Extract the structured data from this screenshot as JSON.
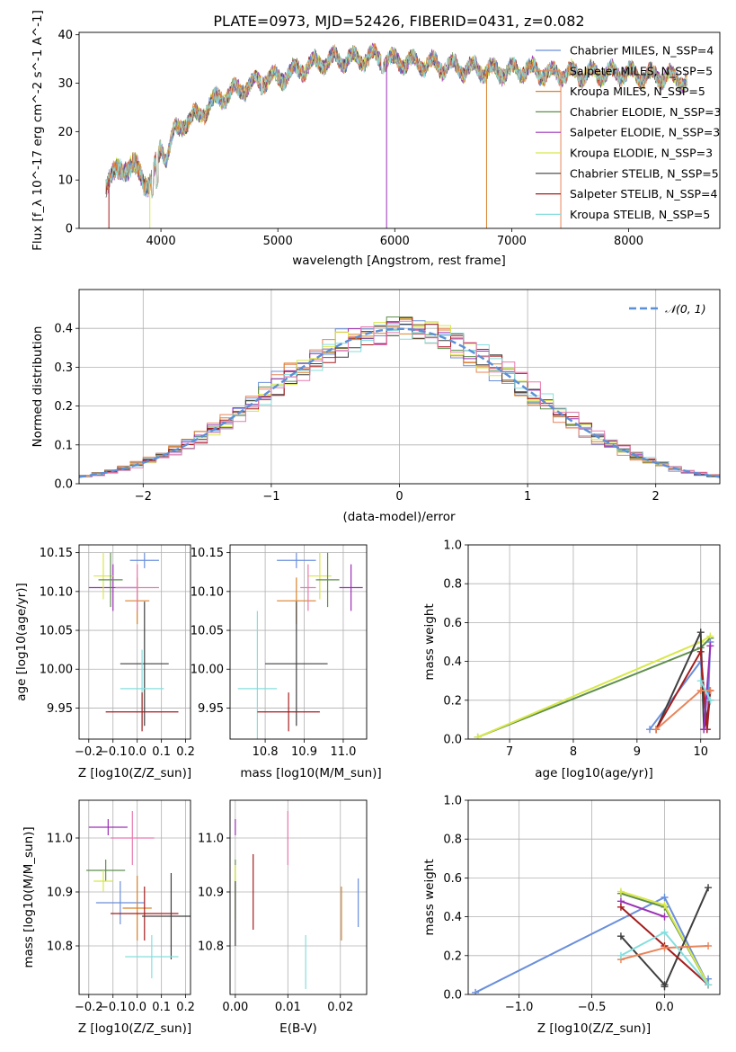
{
  "chart_data": [
    {
      "type": "line",
      "title": "PLATE=0973, MJD=52426, FIBERID=0431, z=0.082",
      "xlabel": "wavelength [Angstrom, rest frame]",
      "ylabel": "Flux [f_λ 10^-17 erg cm^-2 s^-1 A^-1]",
      "xlim": [
        3300,
        8780
      ],
      "ylim": [
        0,
        40.5
      ],
      "xticks": [
        4000,
        5000,
        6000,
        7000,
        8000
      ],
      "yticks": [
        0,
        10,
        20,
        30,
        40
      ],
      "series": [
        {
          "name": "Chabrier MILES, N_SSP=4",
          "color": "#6a8fdb"
        },
        {
          "name": "Salpeter MILES, N_SSP=5",
          "color": "#e8845a"
        },
        {
          "name": "Kroupa MILES, N_SSP=5",
          "color": "#d9822b"
        },
        {
          "name": "Chabrier ELODIE, N_SSP=3",
          "color": "#5f8f4d"
        },
        {
          "name": "Salpeter ELODIE, N_SSP=3",
          "color": "#9b30b5"
        },
        {
          "name": "Kroupa ELODIE, N_SSP=3",
          "color": "#d8e84a"
        },
        {
          "name": "Chabrier STELIB, N_SSP=5",
          "color": "#3f3f3f"
        },
        {
          "name": "Salpeter STELIB, N_SSP=4",
          "color": "#a51d1d"
        },
        {
          "name": "Kroupa STELIB, N_SSP=5",
          "color": "#86dede"
        }
      ],
      "spectrum_envelope": {
        "x": [
          3530,
          3600,
          3700,
          3800,
          3900,
          3950,
          4000,
          4050,
          4100,
          4200,
          4300,
          4400,
          4500,
          4600,
          4700,
          4800,
          4900,
          5000,
          5100,
          5200,
          5300,
          5400,
          5500,
          5600,
          5700,
          5800,
          5900,
          6000,
          6100,
          6200,
          6300,
          6400,
          6500,
          6600,
          6700,
          6800,
          6900,
          7000,
          7100,
          7200,
          7300,
          7400,
          7500,
          7600,
          7700,
          7800,
          7900,
          8000,
          8100,
          8200,
          8300,
          8400,
          8500
        ],
        "y": [
          10,
          11,
          13,
          12,
          9,
          12,
          17,
          15,
          19,
          22,
          23,
          25,
          27,
          28,
          29,
          30,
          31,
          31,
          32,
          33,
          34,
          34.5,
          35,
          35,
          35,
          35.5,
          35,
          34.5,
          34.5,
          34,
          34,
          33.5,
          33.5,
          33,
          33,
          32.5,
          32.5,
          32.5,
          33,
          32.5,
          32,
          32,
          32,
          32,
          32,
          32,
          32,
          32,
          31.5,
          31.5,
          31.5,
          31,
          30.5
        ]
      }
    },
    {
      "type": "bar",
      "title": "",
      "xlabel": "(data-model)/error",
      "ylabel": "Normed distribution",
      "xlim": [
        -2.5,
        2.5
      ],
      "ylim": [
        0,
        0.5
      ],
      "xticks": [
        -2,
        -1,
        0,
        1,
        2
      ],
      "yticks": [
        0.0,
        0.1,
        0.2,
        0.3,
        0.4
      ],
      "bin_width": 0.1,
      "legend": "$\\mathcal{N}(0,1)$",
      "gaussian": {
        "mu": 0,
        "sigma": 1,
        "color": "#5b8fd6"
      },
      "histogram_colors": [
        "#6a8fdb",
        "#e8845a",
        "#d9822b",
        "#5f8f4d",
        "#9b30b5",
        "#d8e84a",
        "#3f3f3f",
        "#a51d1d",
        "#86dede",
        "#e87ab0"
      ]
    },
    {
      "type": "scatter",
      "title": "",
      "xlabel": "Z [log10(Z/Z_sun)]",
      "ylabel": "age [log10(age/yr)]",
      "xlim": [
        -0.24,
        0.22
      ],
      "ylim": [
        9.91,
        10.16
      ],
      "xticks": [
        -0.2,
        -0.1,
        0.0,
        0.1,
        0.2
      ],
      "yticks": [
        9.95,
        10.0,
        10.05,
        10.1,
        10.15
      ],
      "points": [
        {
          "x": 0.03,
          "y": 10.14,
          "xerr": 0.06,
          "yerr": 0.01,
          "color": "#6a8fdb"
        },
        {
          "x": -0.1,
          "y": 10.105,
          "xerr": 0.1,
          "yerr": 0.03,
          "color": "#9b30b5"
        },
        {
          "x": -0.14,
          "y": 10.12,
          "xerr": 0.04,
          "yerr": 0.03,
          "color": "#d8e84a"
        },
        {
          "x": -0.11,
          "y": 10.115,
          "xerr": 0.05,
          "yerr": 0.035,
          "color": "#5f8f4d"
        },
        {
          "x": 0.0,
          "y": 10.088,
          "xerr": 0.05,
          "yerr": 0.03,
          "color": "#d9822b"
        },
        {
          "x": 0.0,
          "y": 10.105,
          "xerr": 0.09,
          "yerr": 0.03,
          "color": "#e87ab0"
        },
        {
          "x": 0.03,
          "y": 10.007,
          "xerr": 0.1,
          "yerr": 0.08,
          "color": "#3f3f3f"
        },
        {
          "x": 0.02,
          "y": 9.975,
          "xerr": 0.09,
          "yerr": 0.05,
          "color": "#86dede"
        },
        {
          "x": 0.02,
          "y": 9.945,
          "xerr": 0.15,
          "yerr": 0.025,
          "color": "#a51d1d"
        }
      ]
    },
    {
      "type": "scatter",
      "title": "",
      "xlabel": "mass [log10(M/M_sun)]",
      "ylabel": "",
      "xlim": [
        10.71,
        11.06
      ],
      "ylim": [
        9.91,
        10.16
      ],
      "xticks": [
        10.8,
        10.9,
        11.0
      ],
      "yticks": [
        9.95,
        10.0,
        10.05,
        10.1,
        10.15
      ],
      "points": [
        {
          "x": 10.88,
          "y": 10.14,
          "xerr": 0.05,
          "yerr": 0.01,
          "color": "#6a8fdb"
        },
        {
          "x": 11.02,
          "y": 10.105,
          "xerr": 0.03,
          "yerr": 0.03,
          "color": "#9b30b5"
        },
        {
          "x": 10.94,
          "y": 10.12,
          "xerr": 0.03,
          "yerr": 0.03,
          "color": "#d8e84a"
        },
        {
          "x": 10.96,
          "y": 10.115,
          "xerr": 0.03,
          "yerr": 0.035,
          "color": "#5f8f4d"
        },
        {
          "x": 10.88,
          "y": 10.088,
          "xerr": 0.05,
          "yerr": 0.03,
          "color": "#d9822b"
        },
        {
          "x": 10.91,
          "y": 10.105,
          "xerr": 0.02,
          "yerr": 0.03,
          "color": "#e87ab0"
        },
        {
          "x": 10.88,
          "y": 10.007,
          "xerr": 0.08,
          "yerr": 0.08,
          "color": "#3f3f3f"
        },
        {
          "x": 10.78,
          "y": 9.975,
          "xerr": 0.05,
          "yerr": 0.1,
          "color": "#86dede"
        },
        {
          "x": 10.86,
          "y": 9.945,
          "xerr": 0.08,
          "yerr": 0.025,
          "color": "#a51d1d"
        }
      ]
    },
    {
      "type": "line",
      "title": "",
      "xlabel": "age [log10(age/yr)]",
      "ylabel": "mass weight",
      "xlim": [
        6.35,
        10.3
      ],
      "ylim": [
        0,
        1
      ],
      "xticks": [
        7,
        8,
        9,
        10
      ],
      "yticks": [
        0.0,
        0.2,
        0.4,
        0.6,
        0.8,
        1.0
      ],
      "series": [
        {
          "color": "#5f8f4d",
          "x": [
            6.5,
            10.0,
            10.15
          ],
          "y": [
            0.01,
            0.47,
            0.52
          ]
        },
        {
          "color": "#d8e84a",
          "x": [
            6.5,
            10.0,
            10.15
          ],
          "y": [
            0.01,
            0.5,
            0.53
          ]
        },
        {
          "color": "#6a8fdb",
          "x": [
            9.2,
            10.0,
            10.1,
            10.15
          ],
          "y": [
            0.05,
            0.4,
            0.05,
            0.5
          ]
        },
        {
          "color": "#3f3f3f",
          "x": [
            9.3,
            10.0,
            10.05,
            10.15
          ],
          "y": [
            0.05,
            0.55,
            0.05,
            0.2
          ]
        },
        {
          "color": "#a51d1d",
          "x": [
            9.3,
            10.0,
            10.1,
            10.15
          ],
          "y": [
            0.05,
            0.45,
            0.05,
            0.25
          ]
        },
        {
          "color": "#9b30b5",
          "x": [
            10.05,
            10.15
          ],
          "y": [
            0.05,
            0.48
          ]
        },
        {
          "color": "#e8845a",
          "x": [
            9.3,
            10.0,
            10.15
          ],
          "y": [
            0.05,
            0.25,
            0.25
          ]
        },
        {
          "color": "#86dede",
          "x": [
            10.0,
            10.15
          ],
          "y": [
            0.3,
            0.2
          ]
        }
      ]
    },
    {
      "type": "scatter",
      "title": "",
      "xlabel": "Z [log10(Z/Z_sun)]",
      "ylabel": "mass [log10(M/M_sun)]",
      "xlim": [
        -0.24,
        0.22
      ],
      "ylim": [
        10.71,
        11.07
      ],
      "xticks": [
        -0.2,
        -0.1,
        0.0,
        0.1,
        0.2
      ],
      "yticks": [
        10.8,
        10.9,
        11.0
      ],
      "points": [
        {
          "x": -0.12,
          "y": 11.02,
          "xerr": 0.08,
          "yerr": 0.015,
          "color": "#9b30b5"
        },
        {
          "x": -0.02,
          "y": 11.0,
          "xerr": 0.09,
          "yerr": 0.05,
          "color": "#e87ab0"
        },
        {
          "x": -0.13,
          "y": 10.94,
          "xerr": 0.08,
          "yerr": 0.02,
          "color": "#5f8f4d"
        },
        {
          "x": -0.14,
          "y": 10.92,
          "xerr": 0.04,
          "yerr": 0.02,
          "color": "#d8e84a"
        },
        {
          "x": -0.07,
          "y": 10.88,
          "xerr": 0.1,
          "yerr": 0.04,
          "color": "#6a8fdb"
        },
        {
          "x": 0.0,
          "y": 10.87,
          "xerr": 0.06,
          "yerr": 0.06,
          "color": "#d9822b"
        },
        {
          "x": 0.03,
          "y": 10.86,
          "xerr": 0.14,
          "yerr": 0.05,
          "color": "#a51d1d"
        },
        {
          "x": 0.14,
          "y": 10.855,
          "xerr": 0.12,
          "yerr": 0.08,
          "color": "#3f3f3f"
        },
        {
          "x": 0.06,
          "y": 10.78,
          "xerr": 0.11,
          "yerr": 0.04,
          "color": "#86dede"
        }
      ]
    },
    {
      "type": "scatter",
      "title": "",
      "xlabel": "E(B-V)",
      "ylabel": "",
      "xlim": [
        -0.001,
        0.025
      ],
      "ylim": [
        10.71,
        11.07
      ],
      "xticks": [
        0.0,
        0.01,
        0.02
      ],
      "yticks": [
        10.8,
        10.9,
        11.0
      ],
      "points": [
        {
          "x": 0.0,
          "y": 11.02,
          "xerr": 0,
          "yerr": 0.015,
          "color": "#9b30b5"
        },
        {
          "x": 0.01,
          "y": 11.0,
          "xerr": 0,
          "yerr": 0.05,
          "color": "#e87ab0"
        },
        {
          "x": 0.0,
          "y": 10.94,
          "xerr": 0,
          "yerr": 0.02,
          "color": "#5f8f4d"
        },
        {
          "x": 0.0,
          "y": 10.9,
          "xerr": 0,
          "yerr": 0.05,
          "color": "#d8e84a"
        },
        {
          "x": 0.0,
          "y": 10.86,
          "xerr": 0,
          "yerr": 0.06,
          "color": "#3f3f3f"
        },
        {
          "x": 0.0034,
          "y": 10.9,
          "xerr": 0,
          "yerr": 0.07,
          "color": "#a51d1d"
        },
        {
          "x": 0.0234,
          "y": 10.88,
          "xerr": 0,
          "yerr": 0.045,
          "color": "#6a8fdb"
        },
        {
          "x": 0.0202,
          "y": 10.86,
          "xerr": 0,
          "yerr": 0.05,
          "color": "#d9822b"
        },
        {
          "x": 0.0134,
          "y": 10.77,
          "xerr": 0,
          "yerr": 0.05,
          "color": "#86dede"
        }
      ]
    },
    {
      "type": "line",
      "title": "",
      "xlabel": "Z [log10(Z/Z_sun)]",
      "ylabel": "mass weight",
      "xlim": [
        -1.35,
        0.38
      ],
      "ylim": [
        0,
        1
      ],
      "xticks": [
        -1.0,
        -0.5,
        0.0
      ],
      "yticks": [
        0.0,
        0.2,
        0.4,
        0.6,
        0.8,
        1.0
      ],
      "series": [
        {
          "color": "#6a8fdb",
          "x": [
            -1.3,
            0.0,
            0.3,
            0.3
          ],
          "y": [
            0.01,
            0.5,
            0.05,
            0.08
          ]
        },
        {
          "color": "#9b30b5",
          "x": [
            -0.3,
            0.0
          ],
          "y": [
            0.48,
            0.4
          ]
        },
        {
          "color": "#5f8f4d",
          "x": [
            -0.3,
            0.0,
            0.3
          ],
          "y": [
            0.52,
            0.45,
            0.05
          ]
        },
        {
          "color": "#d8e84a",
          "x": [
            -0.3,
            0.0,
            0.3
          ],
          "y": [
            0.53,
            0.46,
            0.05
          ]
        },
        {
          "color": "#3f3f3f",
          "x": [
            -0.3,
            0.0,
            0.0,
            0.3
          ],
          "y": [
            0.3,
            0.05,
            0.04,
            0.55
          ]
        },
        {
          "color": "#a51d1d",
          "x": [
            -0.3,
            0.0,
            0.3
          ],
          "y": [
            0.45,
            0.25,
            0.05
          ]
        },
        {
          "color": "#e8845a",
          "x": [
            -0.3,
            0.0,
            0.3
          ],
          "y": [
            0.18,
            0.24,
            0.25
          ]
        },
        {
          "color": "#86dede",
          "x": [
            -0.3,
            0.0,
            0.3
          ],
          "y": [
            0.2,
            0.32,
            0.05
          ]
        }
      ]
    }
  ]
}
